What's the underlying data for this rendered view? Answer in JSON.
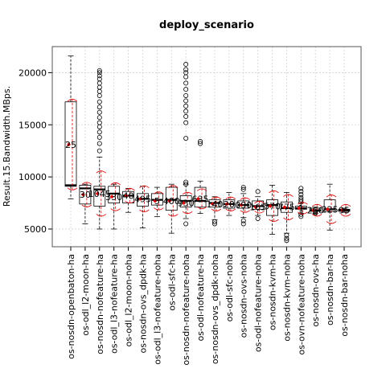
{
  "chart_data": {
    "type": "box",
    "title": "deploy_scenario",
    "xlabel": "",
    "ylabel": "Result.15.Bandwidth.MBps.",
    "ylim": [
      3300,
      22500
    ],
    "yticks": [
      5000,
      10000,
      15000,
      20000
    ],
    "grid": true,
    "legend": "none",
    "colors": {
      "box": "#000000",
      "mean": "#dd0000",
      "grid": "#d3d3d3"
    },
    "categories": [
      "os-nosdn-openbaton-ha",
      "os-odl_l2-moon-ha",
      "os-nosdn-nofeature-ha",
      "os-odl_l3-nofeature-ha",
      "os-odl_l2-moon-noha",
      "os-nosdn-ovs_dpdk-ha",
      "os-odl_l3-nofeature-noha",
      "os-odl-sfc-ha",
      "os-nosdn-nofeature-noha",
      "os-odl-nofeature-ha",
      "os-nosdn-ovs_dpdk-noha",
      "os-odl-sfc-noha",
      "os-nosdn-ovs-noha",
      "os-odl-nofeature-noha",
      "os-nosdn-kvm-ha",
      "os-nosdn-kvm-noha",
      "os-ovn-nofeature-noha",
      "os-nosdn-ovs-ha",
      "os-nosdn-bar-ha",
      "os-nosdn-bar-noha"
    ],
    "boxes": [
      {
        "q1": 9100,
        "median": 9200,
        "q3": 17200,
        "whislo": 7900,
        "whishi": 21600,
        "mean": 13100,
        "n_label": "25",
        "fliers": []
      },
      {
        "q1": 7400,
        "median": 8900,
        "q3": 9200,
        "whislo": 5500,
        "whishi": 9300,
        "mean": 8300,
        "n_label": "30",
        "fliers": []
      },
      {
        "q1": 7200,
        "median": 8800,
        "q3": 9100,
        "whislo": 5000,
        "whishi": 11900,
        "mean": 8400,
        "n_label": "1045",
        "fliers": [
          12500,
          13200,
          13800,
          14300,
          14800,
          15200,
          15700,
          16200,
          16700,
          17200,
          17800,
          18200,
          18600,
          19000,
          19400,
          19700,
          20000,
          20200
        ]
      },
      {
        "q1": 7500,
        "median": 8400,
        "q3": 9100,
        "whislo": 5000,
        "whishi": 9300,
        "mean": 8100,
        "n_label": "330",
        "fliers": []
      },
      {
        "q1": 7500,
        "median": 8200,
        "q3": 8600,
        "whislo": 6600,
        "whishi": 8900,
        "mean": 8200,
        "n_label": "40",
        "fliers": []
      },
      {
        "q1": 7200,
        "median": 7900,
        "q3": 8400,
        "whislo": 5100,
        "whishi": 9100,
        "mean": 7900,
        "n_label": "495",
        "fliers": []
      },
      {
        "q1": 7300,
        "median": 7800,
        "q3": 8400,
        "whislo": 6200,
        "whishi": 9000,
        "mean": 7700,
        "n_label": "5",
        "fliers": []
      },
      {
        "q1": 6800,
        "median": 7800,
        "q3": 9000,
        "whislo": 4600,
        "whishi": 9300,
        "mean": 7700,
        "n_label": "400",
        "fliers": []
      },
      {
        "q1": 7100,
        "median": 7700,
        "q3": 8200,
        "whislo": 6000,
        "whishi": 9300,
        "mean": 7500,
        "n_label": "930",
        "fliers": [
          9300,
          9500,
          13700,
          15200,
          15800,
          16300,
          16800,
          17300,
          17800,
          18400,
          19000,
          19600,
          20000,
          20300,
          20800,
          5500
        ]
      },
      {
        "q1": 7100,
        "median": 7700,
        "q3": 9000,
        "whislo": 6500,
        "whishi": 9600,
        "mean": 7900,
        "n_label": "635",
        "fliers": [
          13200,
          13400
        ]
      },
      {
        "q1": 7100,
        "median": 7500,
        "q3": 7800,
        "whislo": 5900,
        "whishi": 8100,
        "mean": 7400,
        "n_label": "140",
        "fliers": [
          5700,
          5500
        ]
      },
      {
        "q1": 7000,
        "median": 7400,
        "q3": 7800,
        "whislo": 6300,
        "whishi": 8500,
        "mean": 7400,
        "n_label": "20",
        "fliers": []
      },
      {
        "q1": 7000,
        "median": 7300,
        "q3": 7700,
        "whislo": 6100,
        "whishi": 8400,
        "mean": 7300,
        "n_label": "090",
        "fliers": [
          8800,
          9000,
          5800,
          5500
        ]
      },
      {
        "q1": 6900,
        "median": 7200,
        "q3": 7700,
        "whislo": 6300,
        "whishi": 8100,
        "mean": 7100,
        "n_label": "165",
        "fliers": [
          8600,
          6000
        ]
      },
      {
        "q1": 6300,
        "median": 7300,
        "q3": 7800,
        "whislo": 4500,
        "whishi": 9200,
        "mean": 7200,
        "n_label": "570",
        "fliers": []
      },
      {
        "q1": 6600,
        "median": 7000,
        "q3": 7600,
        "whislo": 4600,
        "whishi": 8500,
        "mean": 7100,
        "n_label": "775",
        "fliers": [
          4400,
          4100,
          3900
        ]
      },
      {
        "q1": 6900,
        "median": 7000,
        "q3": 7200,
        "whislo": 6500,
        "whishi": 7500,
        "mean": 7000,
        "n_label": "1",
        "fliers": [
          8900,
          8600,
          8300,
          8000,
          7800,
          7600,
          6200,
          6400
        ]
      },
      {
        "q1": 6700,
        "median": 6800,
        "q3": 7000,
        "whislo": 6500,
        "whishi": 7100,
        "mean": 6800,
        "n_label": "260",
        "fliers": [
          6600,
          6500
        ]
      },
      {
        "q1": 6700,
        "median": 6900,
        "q3": 7800,
        "whislo": 4900,
        "whishi": 9300,
        "mean": 6900,
        "n_label": "225",
        "fliers": []
      },
      {
        "q1": 6700,
        "median": 6800,
        "q3": 6900,
        "whislo": 6600,
        "whishi": 7000,
        "mean": 6800,
        "n_label": "95",
        "fliers": []
      }
    ]
  }
}
